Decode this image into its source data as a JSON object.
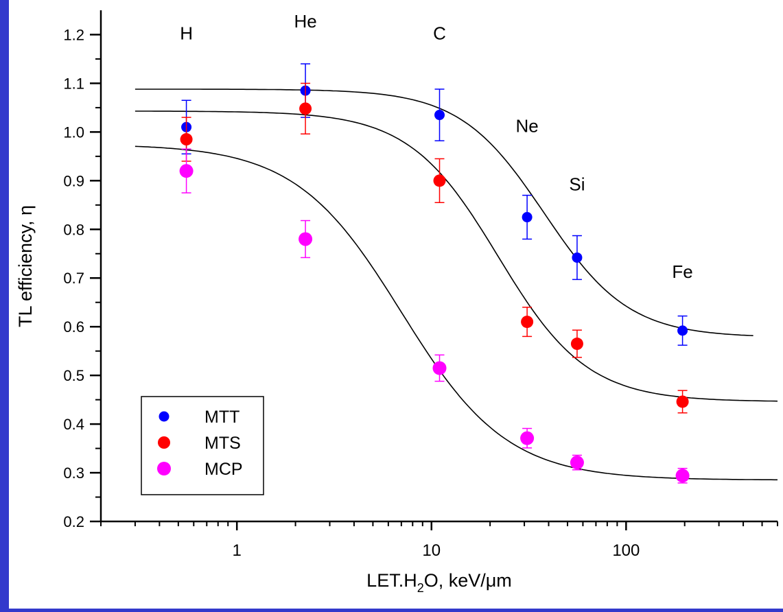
{
  "chart_data": {
    "type": "scatter",
    "xlabel": {
      "main": "LET.H",
      "sub": "2",
      "rest": "O, keV/μm"
    },
    "ylabel": "TL efficiency, η",
    "xscale": "log",
    "xlim": [
      0.2,
      600
    ],
    "ylim": [
      0.2,
      1.25
    ],
    "x_ticks": [
      1,
      10,
      100
    ],
    "x_tick_labels": [
      "1",
      "10",
      "100"
    ],
    "y_ticks": [
      0.2,
      0.3,
      0.4,
      0.5,
      0.6,
      0.7,
      0.8,
      0.9,
      1.0,
      1.1,
      1.2
    ],
    "y_tick_labels": [
      "0.2",
      "0.3",
      "0.4",
      "0.5",
      "0.6",
      "0.7",
      "0.8",
      "0.9",
      "1.0",
      "1.1",
      "1.2"
    ],
    "grid": false,
    "legend_position": "bottom-left",
    "annotations": [
      {
        "text": "H",
        "x": 0.55,
        "y": 1.19
      },
      {
        "text": "He",
        "x": 2.25,
        "y": 1.215
      },
      {
        "text": "C",
        "x": 11,
        "y": 1.19
      },
      {
        "text": "Ne",
        "x": 31,
        "y": 1.0
      },
      {
        "text": "Si",
        "x": 56,
        "y": 0.88
      },
      {
        "text": "Fe",
        "x": 195,
        "y": 0.7
      }
    ],
    "series": [
      {
        "name": "MTT",
        "color": "#0000ff",
        "marker": "circle-small",
        "points": [
          {
            "x": 0.55,
            "y": 1.01,
            "err": 0.055
          },
          {
            "x": 2.25,
            "y": 1.085,
            "err": 0.055
          },
          {
            "x": 11,
            "y": 1.035,
            "err": 0.053
          },
          {
            "x": 31,
            "y": 0.825,
            "err": 0.045
          },
          {
            "x": 56,
            "y": 0.742,
            "err": 0.045
          },
          {
            "x": 195,
            "y": 0.592,
            "err": 0.03
          }
        ]
      },
      {
        "name": "MTS",
        "color": "#ff0000",
        "marker": "circle",
        "points": [
          {
            "x": 0.55,
            "y": 0.985,
            "err": 0.045
          },
          {
            "x": 2.25,
            "y": 1.048,
            "err": 0.052
          },
          {
            "x": 11,
            "y": 0.9,
            "err": 0.045
          },
          {
            "x": 31,
            "y": 0.61,
            "err": 0.03
          },
          {
            "x": 56,
            "y": 0.565,
            "err": 0.028
          },
          {
            "x": 195,
            "y": 0.446,
            "err": 0.023
          }
        ]
      },
      {
        "name": "MCP",
        "color": "#ff00ff",
        "marker": "circle-large",
        "points": [
          {
            "x": 0.55,
            "y": 0.92,
            "err": 0.045
          },
          {
            "x": 2.25,
            "y": 0.78,
            "err": 0.038
          },
          {
            "x": 11,
            "y": 0.515,
            "err": 0.027
          },
          {
            "x": 31,
            "y": 0.371,
            "err": 0.02
          },
          {
            "x": 56,
            "y": 0.321,
            "err": 0.015
          },
          {
            "x": 195,
            "y": 0.294,
            "err": 0.015
          }
        ]
      }
    ],
    "fit_curves": [
      {
        "series": "MTT",
        "x_range": [
          0.3,
          450
        ],
        "plateau_low_x": 1.088,
        "plateau_high_x": 0.578,
        "midpoint_x": 38,
        "slope": 2.0
      },
      {
        "series": "MTS",
        "x_range": [
          0.3,
          600
        ],
        "plateau_low_x": 1.043,
        "plateau_high_x": 0.446,
        "midpoint_x": 22,
        "slope": 1.9
      },
      {
        "series": "MCP",
        "x_range": [
          0.3,
          600
        ],
        "plateau_low_x": 0.975,
        "plateau_high_x": 0.285,
        "midpoint_x": 7,
        "slope": 1.6
      }
    ]
  }
}
